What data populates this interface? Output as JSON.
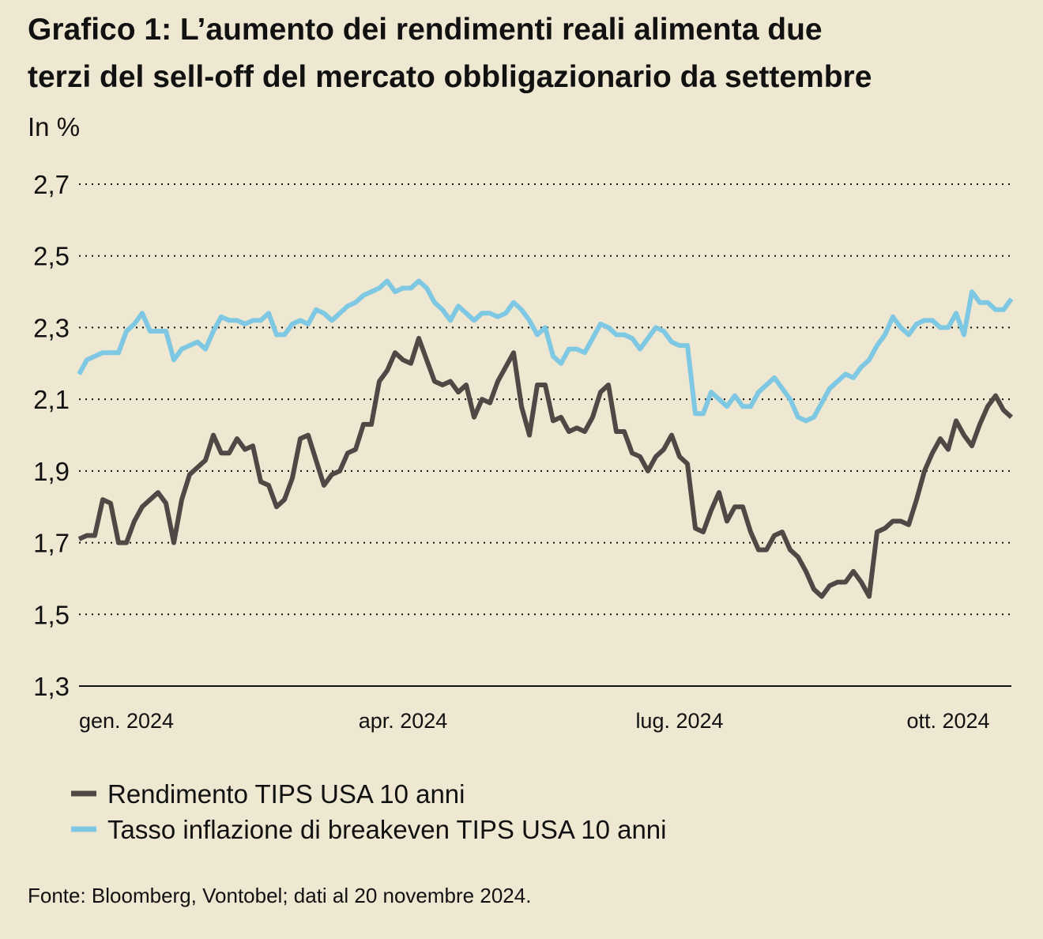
{
  "chart_data": {
    "type": "line",
    "title": [
      "Grafico 1: L’aumento dei rendimenti reali alimenta due",
      "terzi del sell-off del mercato obbligazionario da settembre"
    ],
    "subtitle": "In %",
    "source": "Fonte: Bloomberg, Vontobel; dati al 20 novembre 2024.",
    "categories": [
      null,
      null,
      null,
      null,
      null,
      null,
      "gen. 2024",
      null,
      null,
      null,
      null,
      null,
      null,
      null,
      null,
      null,
      null,
      null,
      null,
      null,
      null,
      null,
      null,
      null,
      null,
      null,
      null,
      null,
      null,
      null,
      null,
      null,
      null,
      null,
      null,
      null,
      null,
      null,
      null,
      null,
      null,
      "apr. 2024",
      null,
      null,
      null,
      null,
      null,
      null,
      null,
      null,
      null,
      null,
      null,
      null,
      null,
      null,
      null,
      null,
      null,
      null,
      null,
      null,
      null,
      null,
      null,
      null,
      null,
      null,
      null,
      null,
      null,
      null,
      null,
      null,
      null,
      null,
      "lug. 2024",
      null,
      null,
      null,
      null,
      null,
      null,
      null,
      null,
      null,
      null,
      null,
      null,
      null,
      null,
      null,
      null,
      null,
      null,
      null,
      null,
      null,
      null,
      null,
      null,
      null,
      null,
      null,
      null,
      null,
      null,
      null,
      null,
      null,
      "ott. 2024",
      null,
      null,
      null,
      null,
      null,
      null,
      null,
      null
    ],
    "series": [
      {
        "name": "Rendimento TIPS USA 10 anni",
        "color": "#4f4845",
        "values": [
          1.71,
          1.72,
          1.72,
          1.82,
          1.81,
          1.7,
          1.7,
          1.76,
          1.8,
          1.82,
          1.84,
          1.81,
          1.7,
          1.82,
          1.89,
          1.91,
          1.93,
          2.0,
          1.95,
          1.95,
          1.99,
          1.96,
          1.97,
          1.87,
          1.86,
          1.8,
          1.82,
          1.88,
          1.99,
          2.0,
          1.93,
          1.86,
          1.89,
          1.9,
          1.95,
          1.96,
          2.03,
          2.03,
          2.15,
          2.18,
          2.23,
          2.21,
          2.2,
          2.27,
          2.21,
          2.15,
          2.14,
          2.15,
          2.12,
          2.14,
          2.05,
          2.1,
          2.09,
          2.15,
          2.19,
          2.23,
          2.08,
          2.0,
          2.14,
          2.14,
          2.04,
          2.05,
          2.01,
          2.02,
          2.01,
          2.05,
          2.12,
          2.14,
          2.01,
          2.01,
          1.95,
          1.94,
          1.9,
          1.94,
          1.96,
          2.0,
          1.94,
          1.92,
          1.74,
          1.73,
          1.79,
          1.84,
          1.76,
          1.8,
          1.8,
          1.73,
          1.68,
          1.68,
          1.72,
          1.73,
          1.68,
          1.66,
          1.62,
          1.57,
          1.55,
          1.58,
          1.59,
          1.59,
          1.62,
          1.59,
          1.55,
          1.73,
          1.74,
          1.76,
          1.76,
          1.75,
          1.82,
          1.9,
          1.95,
          1.99,
          1.96,
          2.04,
          2.0,
          1.97,
          2.03,
          2.08,
          2.11,
          2.07,
          2.05
        ]
      },
      {
        "name": "Tasso inflazione di breakeven TIPS USA 10 anni",
        "color": "#7ec8e3",
        "values": [
          2.17,
          2.21,
          2.22,
          2.23,
          2.23,
          2.23,
          2.29,
          2.31,
          2.34,
          2.29,
          2.29,
          2.29,
          2.21,
          2.24,
          2.25,
          2.26,
          2.24,
          2.29,
          2.33,
          2.32,
          2.32,
          2.31,
          2.32,
          2.32,
          2.34,
          2.28,
          2.28,
          2.31,
          2.32,
          2.31,
          2.35,
          2.34,
          2.32,
          2.34,
          2.36,
          2.37,
          2.39,
          2.4,
          2.41,
          2.43,
          2.4,
          2.41,
          2.41,
          2.43,
          2.41,
          2.37,
          2.35,
          2.32,
          2.36,
          2.34,
          2.32,
          2.34,
          2.34,
          2.33,
          2.34,
          2.37,
          2.35,
          2.32,
          2.28,
          2.3,
          2.22,
          2.2,
          2.24,
          2.24,
          2.23,
          2.27,
          2.31,
          2.3,
          2.28,
          2.28,
          2.27,
          2.24,
          2.27,
          2.3,
          2.29,
          2.26,
          2.25,
          2.25,
          2.06,
          2.06,
          2.12,
          2.1,
          2.08,
          2.11,
          2.08,
          2.08,
          2.12,
          2.14,
          2.16,
          2.13,
          2.1,
          2.05,
          2.04,
          2.05,
          2.09,
          2.13,
          2.15,
          2.17,
          2.16,
          2.19,
          2.21,
          2.25,
          2.28,
          2.33,
          2.3,
          2.28,
          2.31,
          2.32,
          2.32,
          2.3,
          2.3,
          2.34,
          2.28,
          2.4,
          2.37,
          2.37,
          2.35,
          2.35,
          2.38
        ]
      }
    ],
    "ylim": [
      1.3,
      2.7
    ],
    "yticks": [
      {
        "value": 1.3,
        "label": "1,3"
      },
      {
        "value": 1.5,
        "label": "1,5"
      },
      {
        "value": 1.7,
        "label": "1,7"
      },
      {
        "value": 1.9,
        "label": "1,9"
      },
      {
        "value": 2.1,
        "label": "2,1"
      },
      {
        "value": 2.3,
        "label": "2,3"
      },
      {
        "value": 2.5,
        "label": "2,5"
      },
      {
        "value": 2.7,
        "label": "2,7"
      }
    ],
    "grid": true
  }
}
